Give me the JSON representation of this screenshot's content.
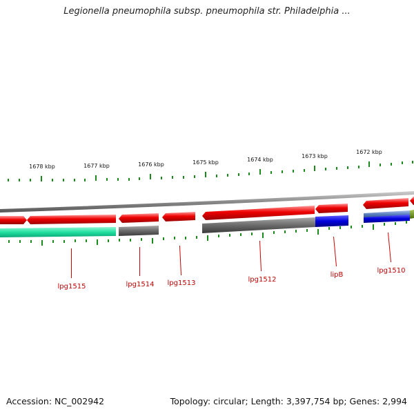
{
  "title": "Legionella pneumophila subsp. pneumophila str. Philadelphia ...",
  "footer": {
    "accession": "Accession: NC_002942",
    "summary": "Topology: circular; Length: 3,397,754 bp; Genes: 2,994"
  },
  "scale_ticks": [
    {
      "label": "1678 kbp",
      "kbp": 1678
    },
    {
      "label": "1677 kbp",
      "kbp": 1677
    },
    {
      "label": "1676 kbp",
      "kbp": 1676
    },
    {
      "label": "1675 kbp",
      "kbp": 1675
    },
    {
      "label": "1674 kbp",
      "kbp": 1674
    },
    {
      "label": "1673 kbp",
      "kbp": 1673
    },
    {
      "label": "1672 kbp",
      "kbp": 1672
    }
  ],
  "gene_labels": [
    "lpg1515",
    "lpg1514",
    "lpg1513",
    "lpg1512",
    "lipB",
    "lpg1510"
  ],
  "colors": {
    "forward_cds": "#ee0000",
    "backbone": "#8a8a8a",
    "tick": "#1a8a1a",
    "label": "#c00000",
    "cog_teal": "#22e0a0",
    "cog_gray": "#6a6a6a",
    "cog_blue": "#0000dd",
    "cog_steel": "#5a7fbf",
    "cog_olive": "#6a8a1a"
  }
}
